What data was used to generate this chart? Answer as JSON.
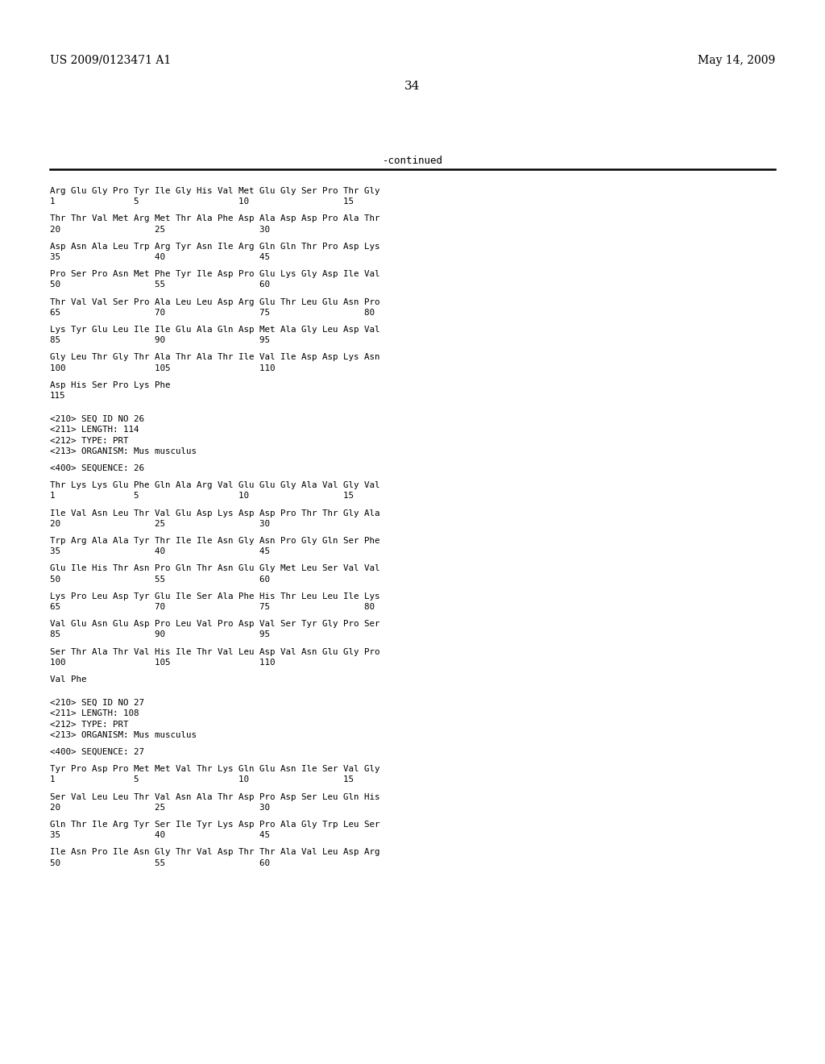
{
  "header_left": "US 2009/0123471 A1",
  "header_right": "May 14, 2009",
  "page_number": "34",
  "continued_label": "-continued",
  "background_color": "#ffffff",
  "text_color": "#000000",
  "mono_font": "DejaVu Sans Mono",
  "content_lines": [
    "Arg Glu Gly Pro Tyr Ile Gly His Val Met Glu Gly Ser Pro Thr Gly",
    "1               5                   10                  15",
    "",
    "Thr Thr Val Met Arg Met Thr Ala Phe Asp Ala Asp Asp Pro Ala Thr",
    "20                  25                  30",
    "",
    "Asp Asn Ala Leu Trp Arg Tyr Asn Ile Arg Gln Gln Thr Pro Asp Lys",
    "35                  40                  45",
    "",
    "Pro Ser Pro Asn Met Phe Tyr Ile Asp Pro Glu Lys Gly Asp Ile Val",
    "50                  55                  60",
    "",
    "Thr Val Val Ser Pro Ala Leu Leu Asp Arg Glu Thr Leu Glu Asn Pro",
    "65                  70                  75                  80",
    "",
    "Lys Tyr Glu Leu Ile Ile Glu Ala Gln Asp Met Ala Gly Leu Asp Val",
    "85                  90                  95",
    "",
    "Gly Leu Thr Gly Thr Ala Thr Ala Thr Ile Val Ile Asp Asp Lys Asn",
    "100                 105                 110",
    "",
    "Asp His Ser Pro Lys Phe",
    "115",
    "",
    "",
    "<210> SEQ ID NO 26",
    "<211> LENGTH: 114",
    "<212> TYPE: PRT",
    "<213> ORGANISM: Mus musculus",
    "",
    "<400> SEQUENCE: 26",
    "",
    "Thr Lys Lys Glu Phe Gln Ala Arg Val Glu Glu Gly Ala Val Gly Val",
    "1               5                   10                  15",
    "",
    "Ile Val Asn Leu Thr Val Glu Asp Lys Asp Asp Pro Thr Thr Gly Ala",
    "20                  25                  30",
    "",
    "Trp Arg Ala Ala Tyr Thr Ile Ile Asn Gly Asn Pro Gly Gln Ser Phe",
    "35                  40                  45",
    "",
    "Glu Ile His Thr Asn Pro Gln Thr Asn Glu Gly Met Leu Ser Val Val",
    "50                  55                  60",
    "",
    "Lys Pro Leu Asp Tyr Glu Ile Ser Ala Phe His Thr Leu Leu Ile Lys",
    "65                  70                  75                  80",
    "",
    "Val Glu Asn Glu Asp Pro Leu Val Pro Asp Val Ser Tyr Gly Pro Ser",
    "85                  90                  95",
    "",
    "Ser Thr Ala Thr Val His Ile Thr Val Leu Asp Val Asn Glu Gly Pro",
    "100                 105                 110",
    "",
    "Val Phe",
    "",
    "",
    "<210> SEQ ID NO 27",
    "<211> LENGTH: 108",
    "<212> TYPE: PRT",
    "<213> ORGANISM: Mus musculus",
    "",
    "<400> SEQUENCE: 27",
    "",
    "Tyr Pro Asp Pro Met Met Val Thr Lys Gln Glu Asn Ile Ser Val Gly",
    "1               5                   10                  15",
    "",
    "Ser Val Leu Leu Thr Val Asn Ala Thr Asp Pro Asp Ser Leu Gln His",
    "20                  25                  30",
    "",
    "Gln Thr Ile Arg Tyr Ser Ile Tyr Lys Asp Pro Ala Gly Trp Leu Ser",
    "35                  40                  45",
    "",
    "Ile Asn Pro Ile Asn Gly Thr Val Asp Thr Thr Ala Val Leu Asp Arg",
    "50                  55                  60"
  ]
}
